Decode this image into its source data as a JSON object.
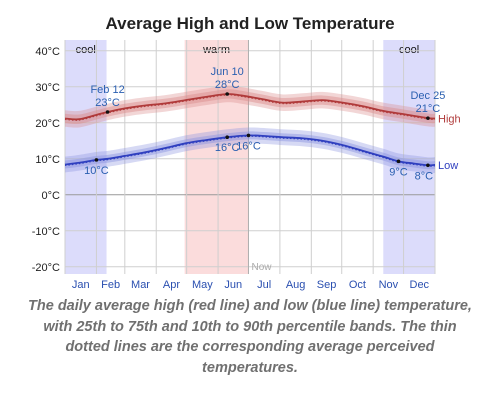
{
  "caption": "The daily average high (red line) and low (blue line) temperature, with 25th to 75th and 10th to 90th percentile bands. The thin dotted lines are the corresponding average perceived temperatures.",
  "chart_data": {
    "type": "line",
    "title": "Average High and Low Temperature",
    "x_unit": "day_of_year",
    "month_labels": [
      "Jan",
      "Feb",
      "Mar",
      "Apr",
      "May",
      "Jun",
      "Jul",
      "Aug",
      "Sep",
      "Oct",
      "Nov",
      "Dec"
    ],
    "month_starts": [
      1,
      32,
      60,
      91,
      121,
      152,
      182,
      213,
      244,
      274,
      305,
      335,
      366
    ],
    "y_ticks": [
      -20,
      -10,
      0,
      10,
      20,
      30,
      40
    ],
    "y_tick_labels": [
      "-20°C",
      "-10°C",
      "0°C",
      "10°C",
      "20°C",
      "30°C",
      "40°C"
    ],
    "ylim": [
      -22,
      43
    ],
    "xlim": [
      1,
      366
    ],
    "grid": true,
    "colors": {
      "high": "#b03a3a",
      "low": "#2f3fbf",
      "high_band": "#d98a8a",
      "low_band": "#8a93e0",
      "cool": "#dcdcfb",
      "warm": "#fbdcdc",
      "month_text": "#2a4fb0",
      "annotation_text": "#2a5fb0",
      "now_text": "#aaaaaa"
    },
    "seasons": [
      {
        "label": "cool",
        "start": 1,
        "end": 42
      },
      {
        "label": "warm",
        "start": 119,
        "end": 182
      },
      {
        "label": "cool",
        "start": 315,
        "end": 366
      }
    ],
    "now": {
      "label": "Now",
      "day": 182
    },
    "series": [
      {
        "name": "High",
        "x": [
          1,
          15,
          32,
          43,
          60,
          80,
          100,
          120,
          140,
          161,
          175,
          195,
          215,
          235,
          255,
          275,
          295,
          315,
          335,
          359,
          366
        ],
        "values": [
          21.2,
          21.0,
          22.2,
          23.0,
          24.0,
          24.8,
          25.4,
          26.3,
          27.2,
          28.0,
          27.6,
          26.6,
          25.6,
          25.9,
          26.3,
          25.6,
          24.6,
          23.3,
          22.4,
          21.3,
          21.2
        ],
        "band_25_75": 1.3,
        "band_10_90": 2.3
      },
      {
        "name": "Low",
        "x": [
          1,
          15,
          32,
          43,
          60,
          80,
          100,
          120,
          140,
          161,
          182,
          200,
          215,
          235,
          255,
          275,
          295,
          315,
          330,
          345,
          359,
          366
        ],
        "values": [
          8.4,
          8.9,
          9.7,
          10.0,
          10.8,
          11.8,
          13.0,
          14.3,
          15.2,
          16.0,
          16.5,
          16.3,
          16.0,
          15.7,
          15.0,
          13.8,
          12.2,
          10.6,
          9.3,
          8.7,
          8.2,
          8.3
        ],
        "band_25_75": 1.1,
        "band_10_90": 2.2
      }
    ],
    "annotations": [
      {
        "series": "High",
        "day": 43,
        "date_label": "Feb 12",
        "value_label": "23°C"
      },
      {
        "series": "High",
        "day": 161,
        "date_label": "Jun 10",
        "value_label": "28°C"
      },
      {
        "series": "High",
        "day": 359,
        "date_label": "Dec 25",
        "value_label": "21°C"
      },
      {
        "series": "Low",
        "day": 32,
        "value_label": "10°C"
      },
      {
        "series": "Low",
        "day": 161,
        "value_label": "16°C"
      },
      {
        "series": "Low",
        "day": 182,
        "value_label": "16°C"
      },
      {
        "series": "Low",
        "day": 330,
        "value_label": "9°C"
      },
      {
        "series": "Low",
        "day": 359,
        "value_label": "8°C"
      }
    ]
  }
}
